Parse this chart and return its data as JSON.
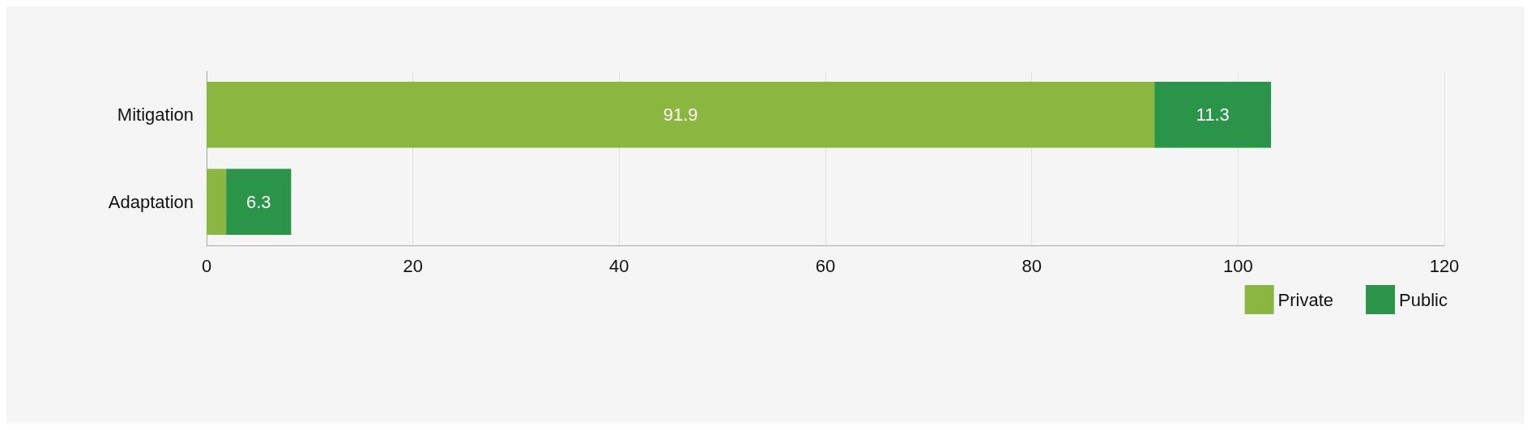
{
  "chart_data": {
    "type": "bar",
    "orientation": "horizontal",
    "stacked": true,
    "categories": [
      "Mitigation",
      "Adaptation"
    ],
    "series": [
      {
        "name": "Private",
        "color": "#8bb640",
        "values": [
          91.9,
          1.9
        ],
        "value_labels": [
          "91.9",
          null
        ]
      },
      {
        "name": "Public",
        "color": "#2a9448",
        "values": [
          11.3,
          6.3
        ],
        "value_labels": [
          "11.3",
          "6.3"
        ]
      }
    ],
    "xlim": [
      0,
      120
    ],
    "xticks": [
      0,
      20,
      40,
      60,
      80,
      100,
      120
    ],
    "grid": "x",
    "legend": "bottom right"
  }
}
